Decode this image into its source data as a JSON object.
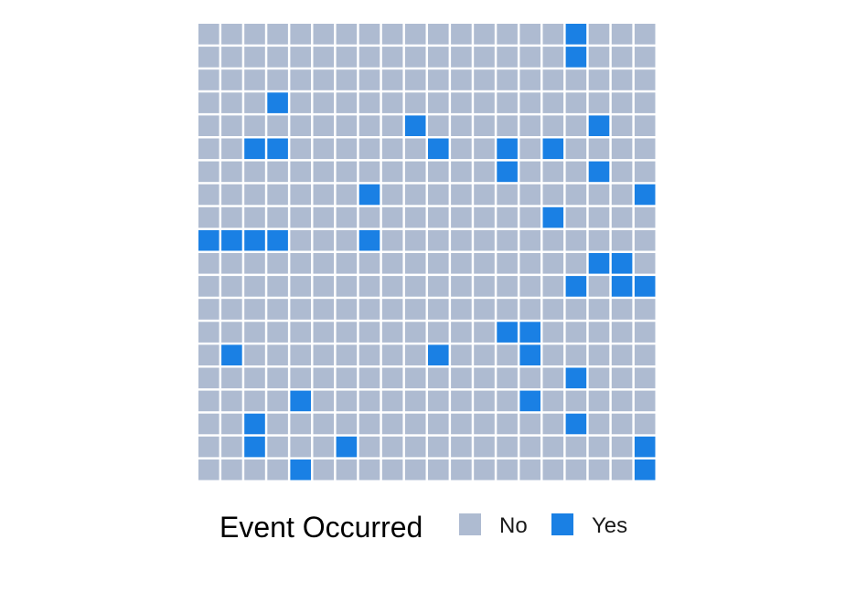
{
  "chart_data": {
    "type": "heatmap",
    "rows": 20,
    "cols": 20,
    "legend": {
      "title": "Event Occurred",
      "position": "bottom",
      "entries": [
        {
          "label": "No",
          "value": 0,
          "color": "#aebbd1"
        },
        {
          "label": "Yes",
          "value": 1,
          "color": "#1a80e4"
        }
      ]
    },
    "grid": false,
    "cells": [
      [
        0,
        0,
        0,
        0,
        0,
        0,
        0,
        0,
        0,
        0,
        0,
        0,
        0,
        0,
        0,
        0,
        1,
        0,
        0,
        0
      ],
      [
        0,
        0,
        0,
        0,
        0,
        0,
        0,
        0,
        0,
        0,
        0,
        0,
        0,
        0,
        0,
        0,
        1,
        0,
        0,
        0
      ],
      [
        0,
        0,
        0,
        0,
        0,
        0,
        0,
        0,
        0,
        0,
        0,
        0,
        0,
        0,
        0,
        0,
        0,
        0,
        0,
        0
      ],
      [
        0,
        0,
        0,
        1,
        0,
        0,
        0,
        0,
        0,
        0,
        0,
        0,
        0,
        0,
        0,
        0,
        0,
        0,
        0,
        0
      ],
      [
        0,
        0,
        0,
        0,
        0,
        0,
        0,
        0,
        0,
        1,
        0,
        0,
        0,
        0,
        0,
        0,
        0,
        1,
        0,
        0
      ],
      [
        0,
        0,
        1,
        1,
        0,
        0,
        0,
        0,
        0,
        0,
        1,
        0,
        0,
        1,
        0,
        1,
        0,
        0,
        0,
        0
      ],
      [
        0,
        0,
        0,
        0,
        0,
        0,
        0,
        0,
        0,
        0,
        0,
        0,
        0,
        1,
        0,
        0,
        0,
        1,
        0,
        0
      ],
      [
        0,
        0,
        0,
        0,
        0,
        0,
        0,
        1,
        0,
        0,
        0,
        0,
        0,
        0,
        0,
        0,
        0,
        0,
        0,
        1
      ],
      [
        0,
        0,
        0,
        0,
        0,
        0,
        0,
        0,
        0,
        0,
        0,
        0,
        0,
        0,
        0,
        1,
        0,
        0,
        0,
        0
      ],
      [
        1,
        1,
        1,
        1,
        0,
        0,
        0,
        1,
        0,
        0,
        0,
        0,
        0,
        0,
        0,
        0,
        0,
        0,
        0,
        0
      ],
      [
        0,
        0,
        0,
        0,
        0,
        0,
        0,
        0,
        0,
        0,
        0,
        0,
        0,
        0,
        0,
        0,
        0,
        1,
        1,
        0
      ],
      [
        0,
        0,
        0,
        0,
        0,
        0,
        0,
        0,
        0,
        0,
        0,
        0,
        0,
        0,
        0,
        0,
        1,
        0,
        1,
        1
      ],
      [
        0,
        0,
        0,
        0,
        0,
        0,
        0,
        0,
        0,
        0,
        0,
        0,
        0,
        0,
        0,
        0,
        0,
        0,
        0,
        0
      ],
      [
        0,
        0,
        0,
        0,
        0,
        0,
        0,
        0,
        0,
        0,
        0,
        0,
        0,
        1,
        1,
        0,
        0,
        0,
        0,
        0
      ],
      [
        0,
        1,
        0,
        0,
        0,
        0,
        0,
        0,
        0,
        0,
        1,
        0,
        0,
        0,
        1,
        0,
        0,
        0,
        0,
        0
      ],
      [
        0,
        0,
        0,
        0,
        0,
        0,
        0,
        0,
        0,
        0,
        0,
        0,
        0,
        0,
        0,
        0,
        1,
        0,
        0,
        0
      ],
      [
        0,
        0,
        0,
        0,
        1,
        0,
        0,
        0,
        0,
        0,
        0,
        0,
        0,
        0,
        1,
        0,
        0,
        0,
        0,
        0
      ],
      [
        0,
        0,
        1,
        0,
        0,
        0,
        0,
        0,
        0,
        0,
        0,
        0,
        0,
        0,
        0,
        0,
        1,
        0,
        0,
        0
      ],
      [
        0,
        0,
        1,
        0,
        0,
        0,
        1,
        0,
        0,
        0,
        0,
        0,
        0,
        0,
        0,
        0,
        0,
        0,
        0,
        1
      ],
      [
        0,
        0,
        0,
        0,
        1,
        0,
        0,
        0,
        0,
        0,
        0,
        0,
        0,
        0,
        0,
        0,
        0,
        0,
        0,
        1
      ]
    ]
  }
}
